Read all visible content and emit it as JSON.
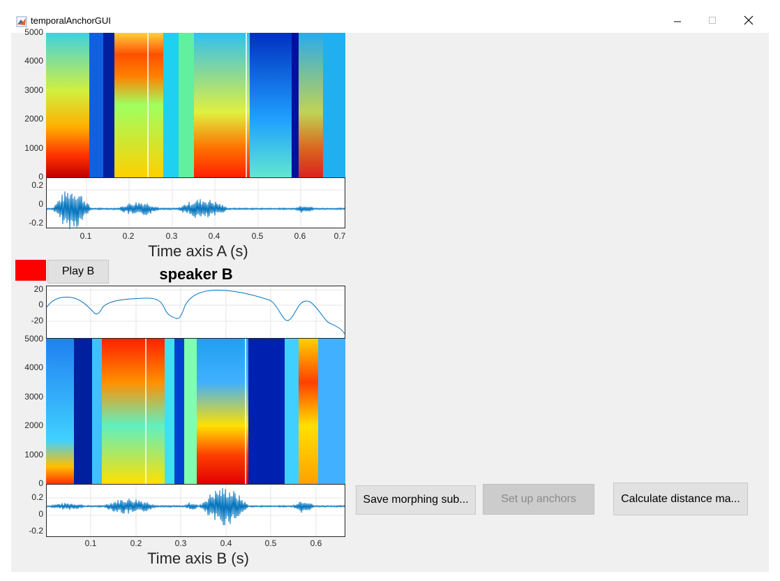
{
  "window": {
    "title": "temporalAnchorGUI",
    "minimize_icon": "minimize-icon",
    "maximize_icon": "maximize-icon",
    "close_icon": "close-icon"
  },
  "top_panel": {
    "spectrogram_y_ticks": [
      "5000",
      "4000",
      "3000",
      "2000",
      "1000",
      "0"
    ],
    "waveform_y_ticks": [
      "0.2",
      "0",
      "-0.2"
    ],
    "x_ticks": [
      "0.1",
      "0.2",
      "0.3",
      "0.4",
      "0.5",
      "0.6",
      "0.7"
    ],
    "xlabel": "Time axis A (s)"
  },
  "controls": {
    "swatch_color": "#ff0000",
    "play_label": "Play B",
    "speaker_title": "speaker B"
  },
  "bottom_panel": {
    "pitch_y_ticks": [
      "20",
      "0",
      "-20"
    ],
    "spectrogram_y_ticks": [
      "5000",
      "4000",
      "3000",
      "2000",
      "1000",
      "0"
    ],
    "waveform_y_ticks": [
      "0.2",
      "0",
      "-0.2"
    ],
    "x_ticks": [
      "0.1",
      "0.2",
      "0.3",
      "0.4",
      "0.5",
      "0.6"
    ],
    "xlabel": "Time axis B (s)"
  },
  "buttons": {
    "save_label": "Save morphing sub...",
    "anchors_label": "Set up anchors",
    "distance_label": "Calculate distance ma..."
  }
}
